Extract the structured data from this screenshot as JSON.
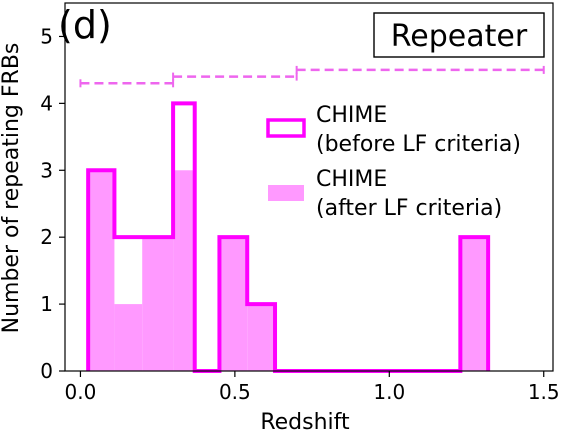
{
  "chart_data": {
    "type": "bar",
    "panel_label": "(d)",
    "box_label": "Repeater",
    "xlabel": "Redshift",
    "ylabel": "Number of repeating FRBs",
    "xlim": [
      -0.05,
      1.53
    ],
    "ylim": [
      0,
      5.5
    ],
    "xticks": [
      0.0,
      0.5,
      1.0,
      1.5
    ],
    "xtick_labels": [
      "0.0",
      "0.5",
      "1.0",
      "1.5"
    ],
    "yticks": [
      0,
      1,
      2,
      3,
      4,
      5
    ],
    "ytick_labels": [
      "0",
      "1",
      "2",
      "3",
      "4",
      "5"
    ],
    "bin_edges": [
      0.025,
      0.11,
      0.2,
      0.3,
      0.37,
      0.45,
      0.54,
      0.63,
      1.23,
      1.32
    ],
    "series": [
      {
        "name": "CHIME\n(before LF criteria)",
        "style": "step",
        "color": "#ff00ff",
        "values": [
          3,
          2,
          2,
          4,
          0,
          2,
          1,
          0,
          2
        ]
      },
      {
        "name": "CHIME\n(after LF criteria)",
        "style": "filled",
        "color": "#ff99ff",
        "values": [
          3,
          1,
          2,
          3,
          0,
          2,
          1,
          0,
          2
        ]
      }
    ],
    "bin_ranges": [
      {
        "x0": 0.0,
        "x1": 0.3,
        "y": 4.3
      },
      {
        "x0": 0.3,
        "x1": 0.7,
        "y": 4.4
      },
      {
        "x0": 0.7,
        "x1": 1.5,
        "y": 4.5
      }
    ],
    "bin_range_color": "#ee66ee",
    "legend": {
      "placement": "center-right",
      "entries": [
        {
          "line1": "CHIME",
          "line2": "(before LF criteria)",
          "style": "outline",
          "color": "#ff00ff"
        },
        {
          "line1": "CHIME",
          "line2": "(after LF criteria)",
          "style": "filled",
          "color": "#ff99ff"
        }
      ]
    }
  }
}
